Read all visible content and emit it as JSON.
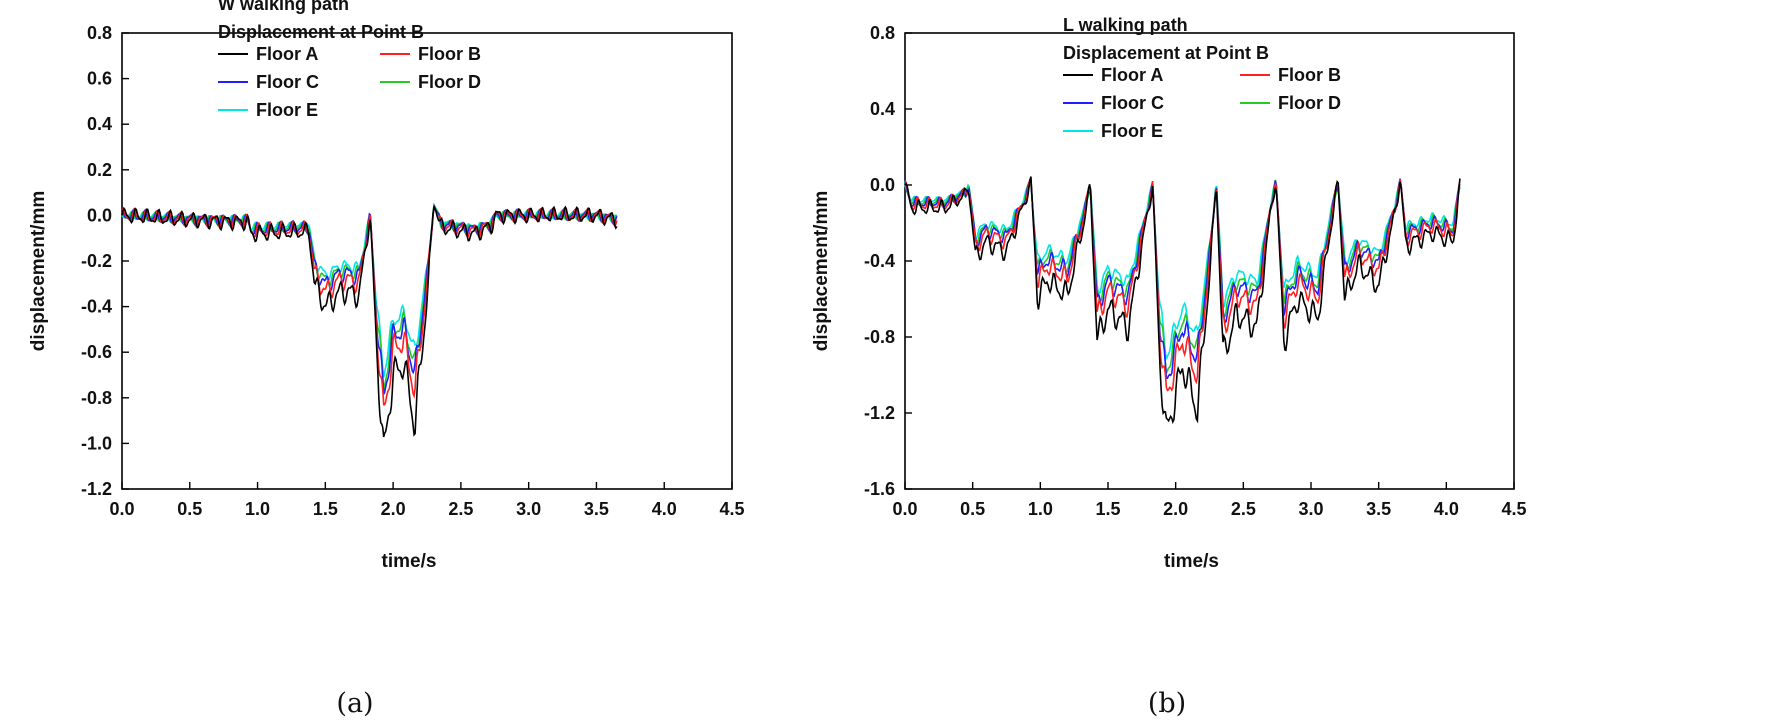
{
  "chart_data": [
    {
      "type": "line",
      "panel": "(a)",
      "xlabel": "time/s",
      "ylabel": "displacement/mm",
      "xlim": [
        0.0,
        4.5
      ],
      "ylim": [
        -1.2,
        0.8
      ],
      "xticks": [
        "0.0",
        "0.5",
        "1.0",
        "1.5",
        "2.0",
        "2.5",
        "3.0",
        "3.5",
        "4.0",
        "4.5"
      ],
      "yticks": [
        "0.8",
        "0.6",
        "0.4",
        "0.2",
        "0.0",
        "-0.2",
        "-0.4",
        "-0.6",
        "-0.8",
        "-1.0",
        "-1.2"
      ],
      "legend_title": [
        "W walking path",
        "Displacement at Point B"
      ],
      "legend_position": "top-left",
      "series": [
        {
          "name": "Floor A",
          "color": "#000000",
          "scale": 1.0
        },
        {
          "name": "Floor B",
          "color": "#ff2020",
          "scale": 0.84
        },
        {
          "name": "Floor C",
          "color": "#2020ff",
          "scale": 0.76
        },
        {
          "name": "Floor D",
          "color": "#22cc22",
          "scale": 0.72
        },
        {
          "name": "Floor E",
          "color": "#00e5e5",
          "scale": 0.66
        }
      ],
      "envelope": {
        "x": [
          0.0,
          0.5,
          0.93,
          0.95,
          1.38,
          1.42,
          1.5,
          1.62,
          1.75,
          1.83,
          1.88,
          1.93,
          2.0,
          2.08,
          2.16,
          2.26,
          2.3,
          2.35,
          2.6,
          2.72,
          2.76,
          3.0,
          3.5,
          3.65
        ],
        "y": [
          0.0,
          -0.02,
          -0.03,
          -0.08,
          -0.07,
          -0.3,
          -0.4,
          -0.33,
          -0.35,
          0.0,
          -0.6,
          -1.05,
          -0.7,
          -0.65,
          -0.92,
          -0.3,
          0.07,
          -0.05,
          -0.08,
          -0.05,
          0.0,
          0.0,
          0.0,
          -0.02
        ]
      }
    },
    {
      "type": "line",
      "panel": "(b)",
      "xlabel": "time/s",
      "ylabel": "displacement/mm",
      "xlim": [
        0.0,
        4.5
      ],
      "ylim": [
        -1.6,
        0.8
      ],
      "xticks": [
        "0.0",
        "0.5",
        "1.0",
        "1.5",
        "2.0",
        "2.5",
        "3.0",
        "3.5",
        "4.0",
        "4.5"
      ],
      "yticks": [
        "0.8",
        "0.4",
        "0.0",
        "-0.4",
        "-0.8",
        "-1.2",
        "-1.6"
      ],
      "legend_title": [
        "L walking path",
        "Displacement at Point B"
      ],
      "legend_position": "top-left",
      "series": [
        {
          "name": "Floor A",
          "color": "#000000",
          "scale": 1.0
        },
        {
          "name": "Floor B",
          "color": "#ff2020",
          "scale": 0.85
        },
        {
          "name": "Floor C",
          "color": "#2020ff",
          "scale": 0.78
        },
        {
          "name": "Floor D",
          "color": "#22cc22",
          "scale": 0.74
        },
        {
          "name": "Floor E",
          "color": "#00e5e5",
          "scale": 0.68
        }
      ],
      "envelope": {
        "x": [
          0.0,
          0.05,
          0.3,
          0.45,
          0.47,
          0.52,
          0.6,
          0.75,
          0.88,
          0.93,
          0.98,
          1.05,
          1.2,
          1.32,
          1.37,
          1.42,
          1.5,
          1.65,
          1.78,
          1.83,
          1.88,
          1.93,
          2.05,
          2.16,
          2.26,
          2.3,
          2.35,
          2.45,
          2.6,
          2.7,
          2.74,
          2.8,
          2.9,
          3.05,
          3.15,
          3.2,
          3.25,
          3.35,
          3.5,
          3.62,
          3.66,
          3.7,
          3.9,
          4.05,
          4.1
        ],
        "y": [
          0.0,
          -0.12,
          -0.12,
          -0.05,
          0.0,
          -0.38,
          -0.3,
          -0.35,
          -0.1,
          0.02,
          -0.6,
          -0.5,
          -0.58,
          -0.2,
          0.0,
          -0.82,
          -0.65,
          -0.75,
          -0.2,
          0.0,
          -0.9,
          -1.32,
          -0.95,
          -1.18,
          -0.4,
          0.03,
          -0.9,
          -0.68,
          -0.75,
          -0.15,
          0.03,
          -0.82,
          -0.6,
          -0.7,
          -0.2,
          0.02,
          -0.6,
          -0.42,
          -0.53,
          -0.15,
          0.03,
          -0.32,
          -0.25,
          -0.3,
          0.0
        ]
      }
    }
  ],
  "captions": [
    "(a)",
    "(b)"
  ]
}
